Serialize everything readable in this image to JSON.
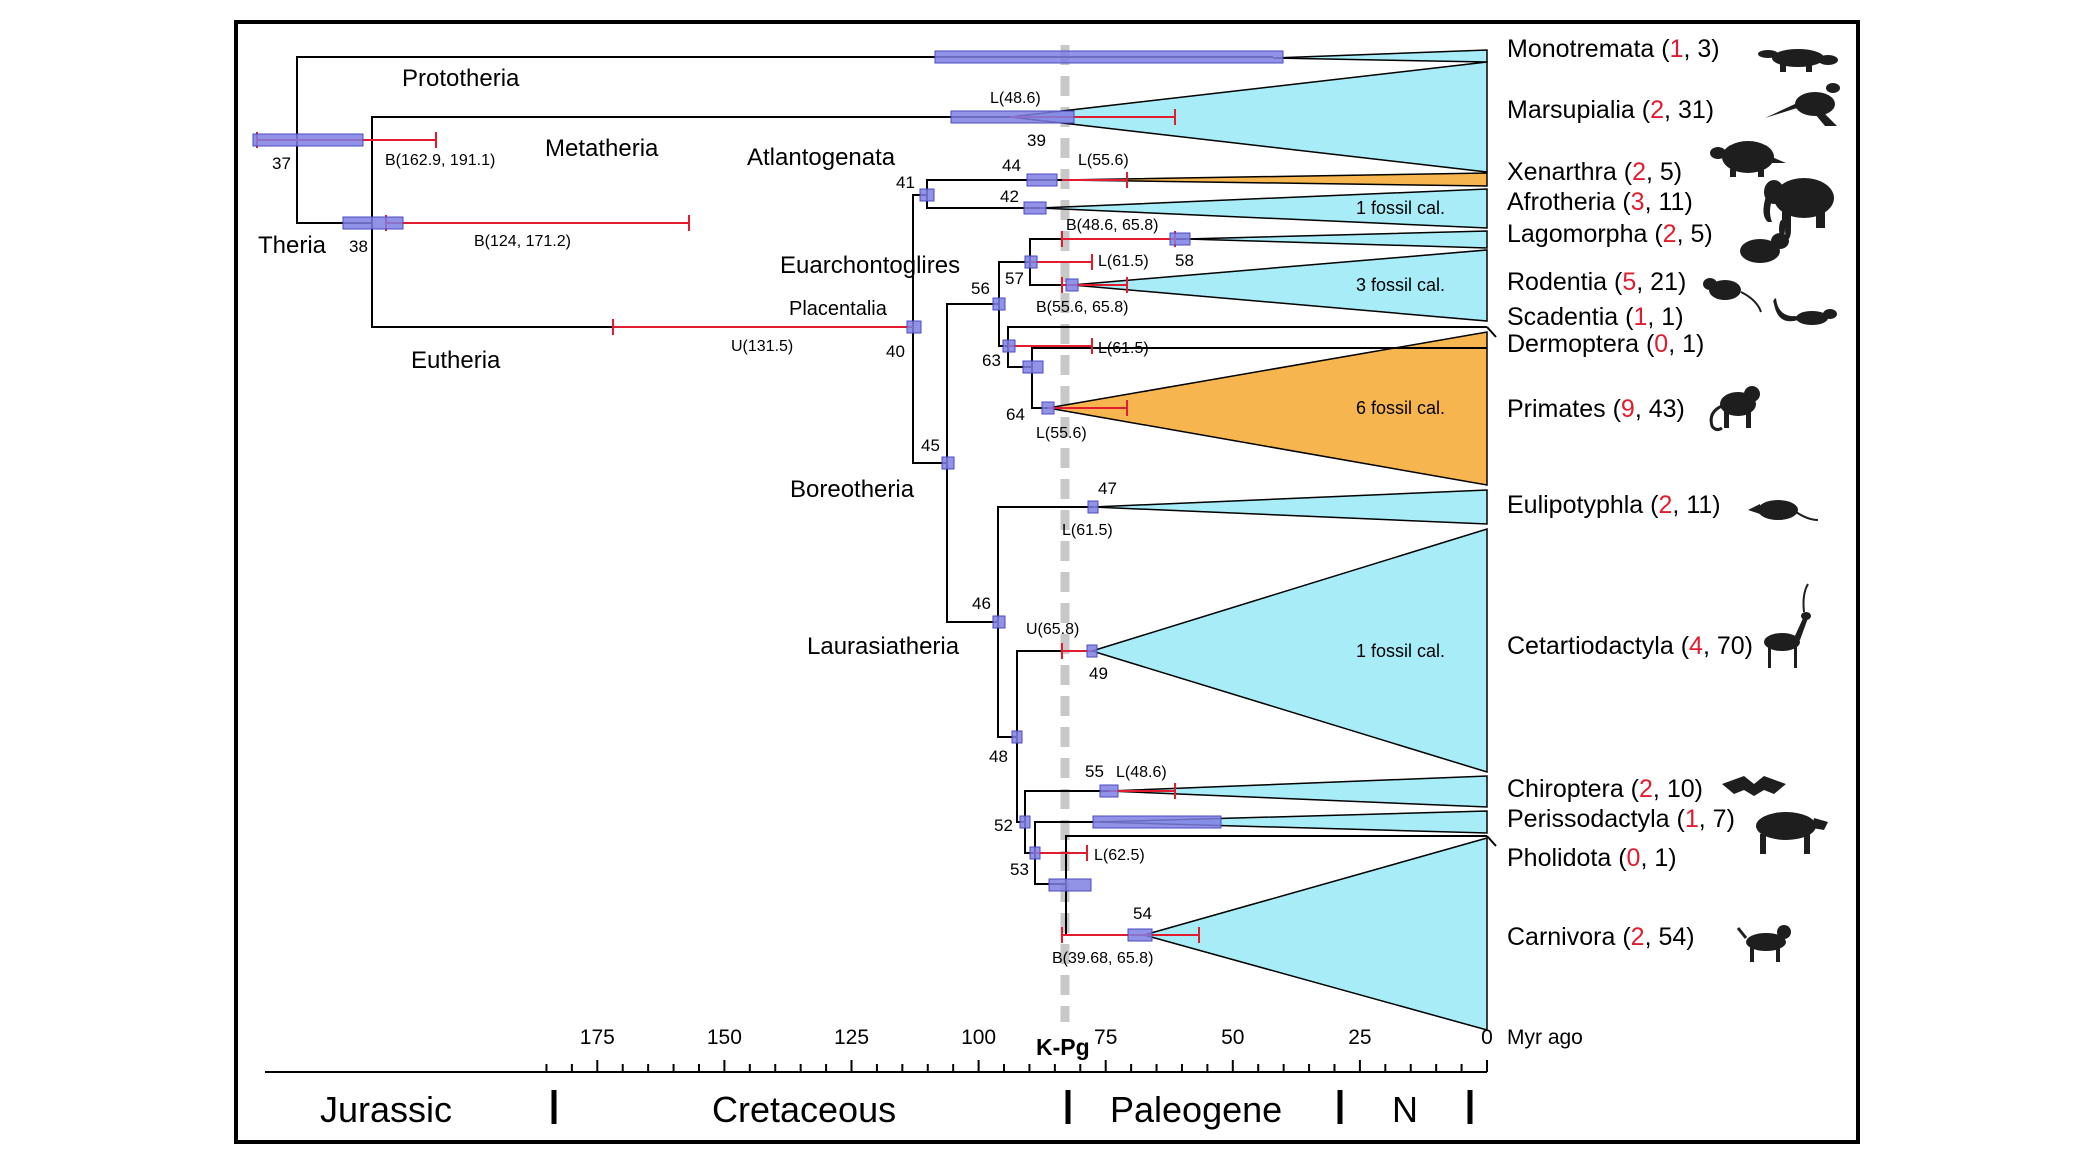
{
  "axis": {
    "ticks": [
      "175",
      "150",
      "125",
      "100",
      "75",
      "50",
      "25",
      "0"
    ],
    "unit": "Myr ago",
    "kpg_label": "K-Pg"
  },
  "periods": [
    "Jurassic",
    "Cretaceous",
    "Paleogene",
    "N"
  ],
  "clade_labels": {
    "prototheria": "Prototheria",
    "metatheria": "Metatheria",
    "theria": "Theria",
    "eutheria": "Eutheria",
    "atlantogenata": "Atlantogenata",
    "euarchontoglires": "Euarchontoglires",
    "placentalia": "Placentalia",
    "boreotheria": "Boreotheria",
    "laurasiatheria": "Laurasiatheria"
  },
  "taxa": [
    {
      "name": "Monotremata",
      "a": "1",
      "b": "3",
      "icon": "platypus-icon"
    },
    {
      "name": "Marsupialia",
      "a": "2",
      "b": "31",
      "icon": "kangaroo-icon"
    },
    {
      "name": "Xenarthra",
      "a": "2",
      "b": "5",
      "icon": "armadillo-icon"
    },
    {
      "name": "Afrotheria",
      "a": "3",
      "b": "11",
      "icon": "elephant-icon"
    },
    {
      "name": "Lagomorpha",
      "a": "2",
      "b": "5",
      "icon": "rabbit-icon"
    },
    {
      "name": "Rodentia",
      "a": "5",
      "b": "21",
      "icon": "mouse-icon"
    },
    {
      "name": "Scadentia",
      "a": "1",
      "b": "1",
      "icon": "treeshrew-icon"
    },
    {
      "name": "Dermoptera",
      "a": "0",
      "b": "1",
      "icon": ""
    },
    {
      "name": "Primates",
      "a": "9",
      "b": "43",
      "icon": "monkey-icon"
    },
    {
      "name": "Eulipotyphla",
      "a": "2",
      "b": "11",
      "icon": "shrew-icon"
    },
    {
      "name": "Cetartiodactyla",
      "a": "4",
      "b": "70",
      "icon": "antelope-icon"
    },
    {
      "name": "Chiroptera",
      "a": "2",
      "b": "10",
      "icon": "bat-icon"
    },
    {
      "name": "Perissodactyla",
      "a": "1",
      "b": "7",
      "icon": "tapir-icon"
    },
    {
      "name": "Pholidota",
      "a": "0",
      "b": "1",
      "icon": ""
    },
    {
      "name": "Carnivora",
      "a": "2",
      "b": "54",
      "icon": "dog-icon"
    }
  ],
  "node_numbers": [
    "37",
    "38",
    "39",
    "40",
    "41",
    "42",
    "44",
    "45",
    "46",
    "47",
    "48",
    "49",
    "52",
    "53",
    "54",
    "55",
    "56",
    "57",
    "58",
    "63",
    "64"
  ],
  "calibrations": {
    "root": "B(162.9, 191.1)",
    "eutheria": "B(124, 171.2)",
    "placentalia": "U(131.5)",
    "marsupialia": "L(48.6)",
    "xenarthra": "L(55.6)",
    "lagomorpha": "B(48.6, 65.8)",
    "glires": "L(61.5)",
    "rodentia": "B(55.6, 65.8)",
    "euarchonta": "L(61.5)",
    "primates": "L(55.6)",
    "eulipotyphla": "L(61.5)",
    "cetartiodactyla": "U(65.8)",
    "chiroptera": "L(48.6)",
    "ferae": "L(62.5)",
    "carnivora": "B(39.68, 65.8)"
  },
  "fossil_cal": {
    "afrotheria": "1 fossil cal.",
    "rodentia": "3 fossil cal.",
    "primates": "6 fossil cal.",
    "cetartiodactyla": "1 fossil cal."
  },
  "colors": {
    "cyan": "#a8ecf8",
    "orange": "#f6b54e",
    "bar": "#7f7fe3",
    "red": "#e11c2e",
    "kpg": "#c8c8c8"
  }
}
